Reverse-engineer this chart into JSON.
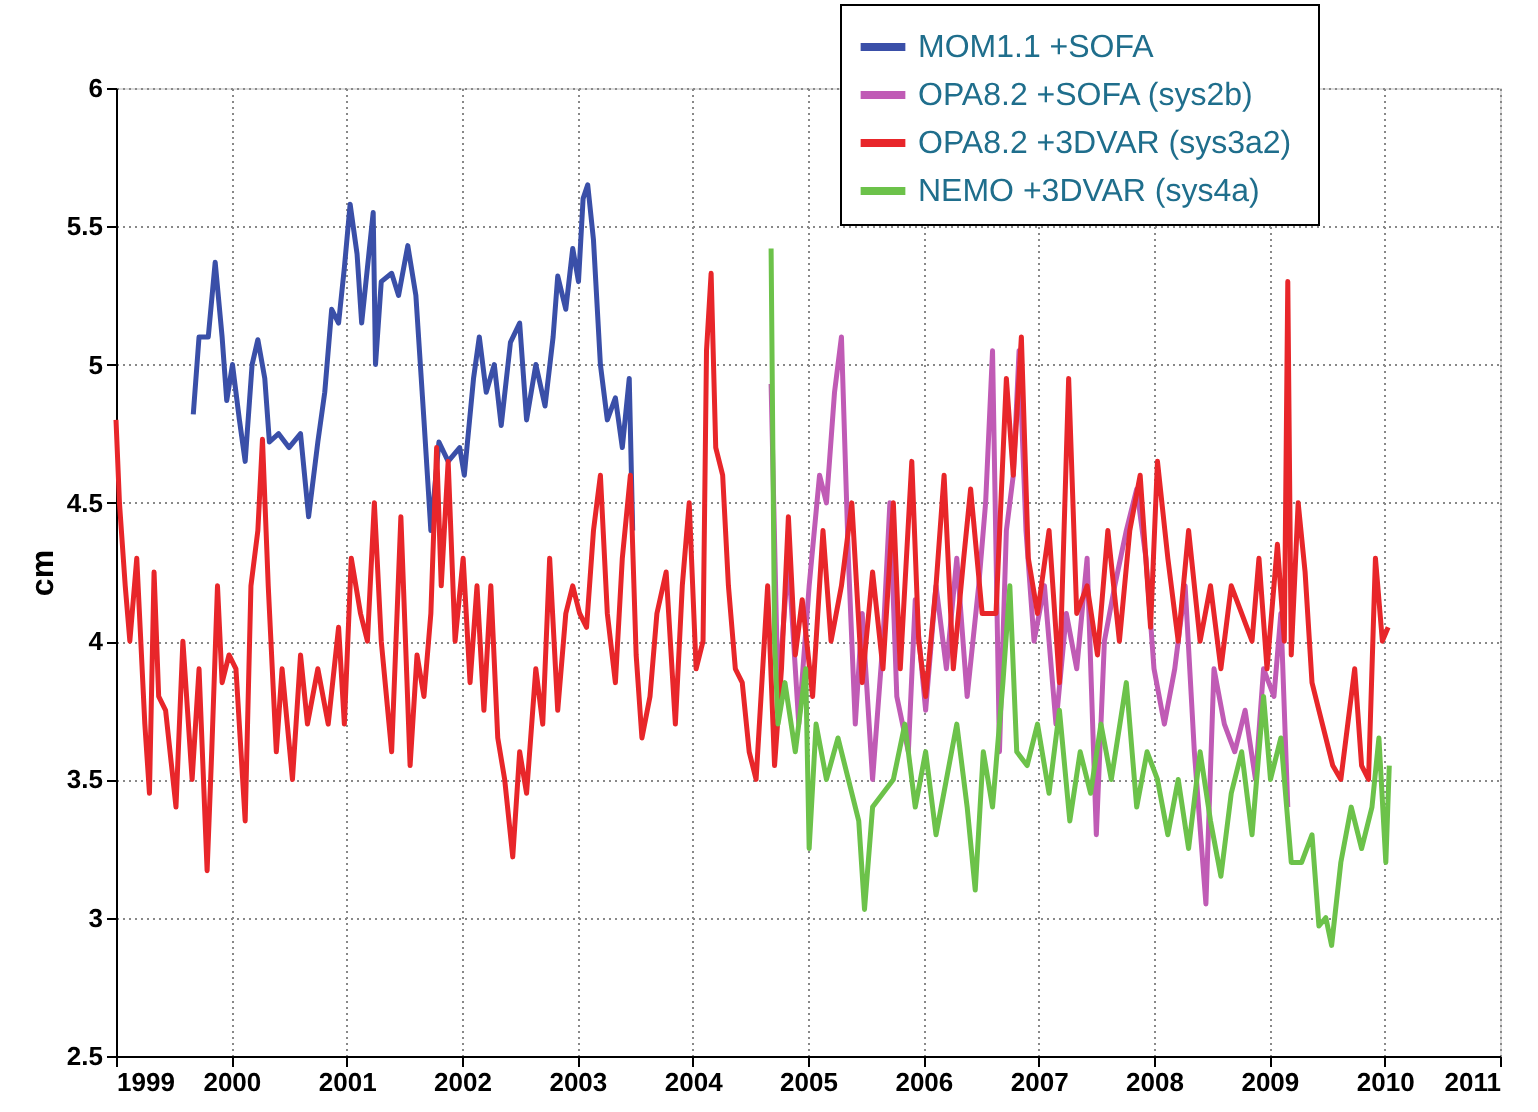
{
  "chart_data": {
    "type": "line",
    "ylabel": "cm",
    "xlim": [
      1999,
      2011
    ],
    "xticks": [
      1999,
      2000,
      2001,
      2002,
      2003,
      2004,
      2005,
      2006,
      2007,
      2008,
      2009,
      2010,
      2011
    ],
    "ylim": [
      2.5,
      6
    ],
    "yticks": [
      2.5,
      3,
      3.5,
      4,
      4.5,
      5,
      5.5,
      6
    ],
    "grid": true,
    "legend": "top right",
    "marker": "none",
    "line_style": "solid",
    "series": [
      {
        "name": "MOM1.1 +SOFA",
        "color": "#3a4fa8",
        "x": [
          1999.67,
          1999.72,
          1999.8,
          1999.86,
          1999.92,
          1999.96,
          2000.01,
          2000.07,
          2000.12,
          2000.18,
          2000.23,
          2000.29,
          2000.33,
          2000.41,
          2000.5,
          2000.6,
          2000.67,
          2000.75,
          2000.81,
          2000.87,
          2000.93,
          2000.98,
          2001.03,
          2001.09,
          2001.13,
          2001.18,
          2001.23,
          2001.25,
          2001.3,
          2001.39,
          2001.45,
          2001.53,
          2001.6,
          2001.67,
          2001.73,
          2001.8,
          2001.88,
          2001.98,
          2002.02,
          2002.1,
          2002.15,
          2002.21,
          2002.28,
          2002.34,
          2002.42,
          2002.5,
          2002.56,
          2002.64,
          2002.72,
          2002.79,
          2002.83,
          2002.9,
          2002.96,
          2003.01,
          2003.05,
          2003.09,
          2003.14,
          2003.2,
          2003.26,
          2003.33,
          2003.39,
          2003.45,
          2003.48
        ],
        "values": [
          4.82,
          5.1,
          5.1,
          5.37,
          5.1,
          4.87,
          5.0,
          4.8,
          4.65,
          5.0,
          5.09,
          4.95,
          4.72,
          4.75,
          4.7,
          4.75,
          4.45,
          4.72,
          4.9,
          5.2,
          5.15,
          5.35,
          5.58,
          5.4,
          5.15,
          5.35,
          5.55,
          5.0,
          5.3,
          5.33,
          5.25,
          5.43,
          5.25,
          4.8,
          4.4,
          4.72,
          4.65,
          4.7,
          4.6,
          4.95,
          5.1,
          4.9,
          5.0,
          4.78,
          5.08,
          5.15,
          4.8,
          5.0,
          4.85,
          5.1,
          5.32,
          5.2,
          5.42,
          5.3,
          5.6,
          5.65,
          5.45,
          5.0,
          4.8,
          4.88,
          4.7,
          4.95,
          4.4
        ]
      },
      {
        "name": "OPA8.2  +SOFA (sys2b)",
        "color": "#c05bb5",
        "x": [
          2004.68,
          2004.74,
          2004.83,
          2004.92,
          2005.01,
          2005.1,
          2005.16,
          2005.23,
          2005.29,
          2005.35,
          2005.41,
          2005.47,
          2005.56,
          2005.65,
          2005.71,
          2005.77,
          2005.87,
          2005.93,
          2006.02,
          2006.11,
          2006.2,
          2006.29,
          2006.38,
          2006.48,
          2006.54,
          2006.6,
          2006.66,
          2006.72,
          2006.78,
          2006.83,
          2006.89,
          2006.96,
          2007.05,
          2007.15,
          2007.24,
          2007.33,
          2007.42,
          2007.5,
          2007.57,
          2007.66,
          2007.76,
          2007.85,
          2007.93,
          2008.0,
          2008.09,
          2008.18,
          2008.27,
          2008.35,
          2008.45,
          2008.52,
          2008.61,
          2008.7,
          2008.79,
          2008.88,
          2008.95,
          2009.04,
          2009.1,
          2009.16
        ],
        "values": [
          4.93,
          3.8,
          4.3,
          3.7,
          4.2,
          4.6,
          4.5,
          4.9,
          5.1,
          4.3,
          3.7,
          4.1,
          3.5,
          4.0,
          4.5,
          3.8,
          3.6,
          4.15,
          3.75,
          4.2,
          3.9,
          4.3,
          3.8,
          4.2,
          4.5,
          5.05,
          3.6,
          4.4,
          4.6,
          5.05,
          4.4,
          4.0,
          4.2,
          3.7,
          4.1,
          3.9,
          4.3,
          3.3,
          4.0,
          4.2,
          4.4,
          4.55,
          4.3,
          3.9,
          3.7,
          3.9,
          4.2,
          3.6,
          3.05,
          3.9,
          3.7,
          3.6,
          3.75,
          3.5,
          3.9,
          3.8,
          4.1,
          3.4
        ]
      },
      {
        "name": "OPA8.2  +3DVAR (sys3a2)",
        "color": "#e8262a",
        "x": [
          1999.0,
          1999.03,
          1999.08,
          1999.12,
          1999.18,
          1999.25,
          1999.29,
          1999.33,
          1999.37,
          1999.43,
          1999.52,
          1999.58,
          1999.66,
          1999.72,
          1999.79,
          1999.83,
          1999.88,
          1999.92,
          1999.98,
          2000.04,
          2000.12,
          2000.17,
          2000.23,
          2000.27,
          2000.32,
          2000.39,
          2000.44,
          2000.53,
          2000.6,
          2000.66,
          2000.75,
          2000.84,
          2000.93,
          2000.98,
          2001.04,
          2001.12,
          2001.18,
          2001.24,
          2001.3,
          2001.39,
          2001.47,
          2001.55,
          2001.61,
          2001.67,
          2001.73,
          2001.78,
          2001.82,
          2001.88,
          2001.94,
          2002.01,
          2002.07,
          2002.13,
          2002.19,
          2002.25,
          2002.31,
          2002.37,
          2002.44,
          2002.5,
          2002.56,
          2002.64,
          2002.7,
          2002.76,
          2002.83,
          2002.9,
          2002.96,
          2003.02,
          2003.08,
          2003.14,
          2003.2,
          2003.26,
          2003.33,
          2003.39,
          2003.46,
          2003.51,
          2003.56,
          2003.63,
          2003.69,
          2003.77,
          2003.85,
          2003.91,
          2003.97,
          2004.03,
          2004.09,
          2004.12,
          2004.16,
          2004.2,
          2004.26,
          2004.31,
          2004.37,
          2004.43,
          2004.49,
          2004.55,
          2004.65,
          2004.71,
          2004.77,
          2004.83,
          2004.89,
          2004.95,
          2005.04,
          2005.13,
          2005.2,
          2005.29,
          2005.38,
          2005.47,
          2005.56,
          2005.65,
          2005.74,
          2005.8,
          2005.9,
          2005.96,
          2006.02,
          2006.11,
          2006.18,
          2006.26,
          2006.35,
          2006.41,
          2006.51,
          2006.63,
          2006.72,
          2006.78,
          2006.85,
          2006.91,
          2006.99,
          2007.09,
          2007.18,
          2007.26,
          2007.33,
          2007.42,
          2007.51,
          2007.6,
          2007.7,
          2007.79,
          2007.88,
          2007.97,
          2008.03,
          2008.12,
          2008.21,
          2008.3,
          2008.4,
          2008.49,
          2008.58,
          2008.67,
          2008.76,
          2008.85,
          2008.91,
          2008.98,
          2009.07,
          2009.13,
          2009.16,
          2009.19,
          2009.25,
          2009.31,
          2009.37,
          2009.43,
          2009.49,
          2009.55,
          2009.62,
          2009.68,
          2009.74,
          2009.8,
          2009.86,
          2009.92,
          2009.98,
          2010.03
        ],
        "values": [
          4.8,
          4.5,
          4.2,
          4.0,
          4.3,
          3.7,
          3.45,
          4.25,
          3.8,
          3.75,
          3.4,
          4.0,
          3.5,
          3.9,
          3.17,
          3.6,
          4.2,
          3.85,
          3.95,
          3.9,
          3.35,
          4.2,
          4.4,
          4.73,
          4.2,
          3.6,
          3.9,
          3.5,
          3.95,
          3.7,
          3.9,
          3.7,
          4.05,
          3.7,
          4.3,
          4.1,
          4.0,
          4.5,
          4.0,
          3.6,
          4.45,
          3.55,
          3.95,
          3.8,
          4.1,
          4.7,
          4.2,
          4.65,
          4.0,
          4.3,
          3.85,
          4.2,
          3.75,
          4.2,
          3.65,
          3.5,
          3.22,
          3.6,
          3.45,
          3.9,
          3.7,
          4.3,
          3.75,
          4.1,
          4.2,
          4.1,
          4.05,
          4.4,
          4.6,
          4.1,
          3.85,
          4.3,
          4.6,
          3.95,
          3.65,
          3.8,
          4.1,
          4.25,
          3.7,
          4.2,
          4.5,
          3.9,
          4.0,
          5.05,
          5.33,
          4.7,
          4.6,
          4.2,
          3.9,
          3.85,
          3.6,
          3.5,
          4.2,
          3.55,
          3.9,
          4.45,
          3.95,
          4.15,
          3.8,
          4.4,
          4.0,
          4.2,
          4.5,
          3.85,
          4.25,
          3.9,
          4.5,
          3.9,
          4.65,
          4.0,
          3.8,
          4.2,
          4.6,
          3.9,
          4.3,
          4.55,
          4.1,
          4.1,
          4.95,
          4.6,
          5.1,
          4.3,
          4.1,
          4.4,
          3.85,
          4.95,
          4.1,
          4.2,
          3.95,
          4.4,
          4.0,
          4.4,
          4.6,
          4.05,
          4.65,
          4.3,
          4.0,
          4.4,
          4.0,
          4.2,
          3.9,
          4.2,
          4.1,
          4.0,
          4.3,
          3.9,
          4.35,
          4.0,
          5.3,
          3.95,
          4.5,
          4.25,
          3.85,
          3.75,
          3.65,
          3.55,
          3.5,
          3.7,
          3.9,
          3.55,
          3.5,
          4.3,
          4.0,
          4.05
        ]
      },
      {
        "name": "NEMO   +3DVAR (sys4a)",
        "color": "#6cc24a",
        "x": [
          2004.68,
          2004.71,
          2004.74,
          2004.8,
          2004.89,
          2004.98,
          2005.01,
          2005.07,
          2005.16,
          2005.26,
          2005.35,
          2005.44,
          2005.49,
          2005.56,
          2005.65,
          2005.74,
          2005.84,
          2005.93,
          2006.02,
          2006.11,
          2006.2,
          2006.29,
          2006.38,
          2006.45,
          2006.52,
          2006.6,
          2006.69,
          2006.75,
          2006.81,
          2006.9,
          2006.99,
          2007.09,
          2007.18,
          2007.27,
          2007.36,
          2007.45,
          2007.54,
          2007.63,
          2007.76,
          2007.85,
          2007.94,
          2008.03,
          2008.12,
          2008.21,
          2008.3,
          2008.4,
          2008.49,
          2008.58,
          2008.67,
          2008.76,
          2008.85,
          2008.95,
          2009.01,
          2009.1,
          2009.19,
          2009.28,
          2009.37,
          2009.43,
          2009.49,
          2009.54,
          2009.62,
          2009.71,
          2009.8,
          2009.89,
          2009.95,
          2010.01,
          2010.04
        ],
        "values": [
          5.42,
          4.0,
          3.7,
          3.85,
          3.6,
          3.9,
          3.25,
          3.7,
          3.5,
          3.65,
          3.5,
          3.35,
          3.03,
          3.4,
          3.45,
          3.5,
          3.7,
          3.4,
          3.6,
          3.3,
          3.5,
          3.7,
          3.4,
          3.1,
          3.6,
          3.4,
          3.85,
          4.2,
          3.6,
          3.55,
          3.7,
          3.45,
          3.75,
          3.35,
          3.6,
          3.45,
          3.7,
          3.5,
          3.85,
          3.4,
          3.6,
          3.5,
          3.3,
          3.5,
          3.25,
          3.6,
          3.35,
          3.15,
          3.45,
          3.6,
          3.3,
          3.8,
          3.5,
          3.65,
          3.2,
          3.2,
          3.3,
          2.97,
          3.0,
          2.9,
          3.2,
          3.4,
          3.25,
          3.4,
          3.65,
          3.2,
          3.55
        ]
      }
    ]
  }
}
